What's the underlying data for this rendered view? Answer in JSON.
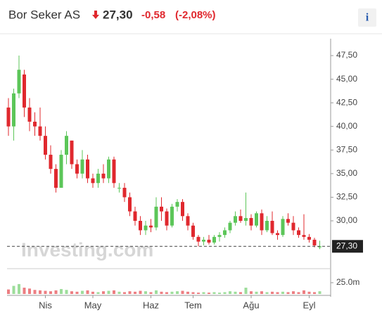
{
  "header": {
    "name": "Bor Seker AS",
    "price": "27,30",
    "change": "-0,58",
    "change_pct": "(-2,08%)",
    "info_button": "i"
  },
  "chart_data": {
    "type": "candlestick",
    "watermark": "Investing.com",
    "categories": [
      null,
      null,
      null,
      null,
      null,
      null,
      null,
      "Nis",
      null,
      null,
      null,
      null,
      null,
      null,
      null,
      null,
      "May",
      null,
      null,
      null,
      null,
      null,
      null,
      null,
      null,
      null,
      null,
      "Haz",
      null,
      null,
      null,
      null,
      null,
      null,
      null,
      "Tem",
      null,
      null,
      null,
      null,
      null,
      null,
      null,
      null,
      null,
      null,
      "Ağu",
      null,
      null,
      null,
      null,
      null,
      null,
      null,
      null,
      null,
      null,
      "Eyl",
      null,
      null
    ],
    "open": [
      42,
      40,
      43.5,
      45.5,
      42,
      40.5,
      40,
      39,
      37,
      35.5,
      33.5,
      37,
      38.5,
      36,
      35,
      36.5,
      34.5,
      34,
      35,
      34.5,
      36.5,
      33.5,
      33.5,
      32.5,
      31,
      30,
      29,
      29.5,
      29.3,
      31.5,
      31,
      29.5,
      31.5,
      32,
      30.5,
      29.5,
      28.3,
      27.8,
      28,
      27.7,
      28.3,
      28.5,
      29,
      29.8,
      30.5,
      30,
      30.3,
      29.5,
      30.8,
      29,
      30,
      28.7,
      28.5,
      30.2,
      29.8,
      29,
      28.5,
      28.3,
      28,
      27.2
    ],
    "high": [
      43,
      44,
      47.5,
      46,
      43,
      41.5,
      42,
      40,
      38,
      36,
      37.5,
      39.5,
      38.5,
      36.5,
      37.5,
      37,
      35,
      35.5,
      36,
      36.8,
      36.8,
      34,
      34,
      33,
      31.5,
      30.5,
      30,
      30.2,
      32.5,
      32.5,
      31.3,
      31.8,
      32.3,
      32.3,
      30.8,
      29.8,
      28.5,
      28.3,
      28.5,
      28.5,
      28.8,
      29.3,
      30,
      31,
      31.2,
      33,
      30.7,
      31,
      31.2,
      30.5,
      31,
      29,
      30.5,
      30.8,
      30.5,
      29.3,
      30.7,
      28.6,
      28.2,
      27.9
    ],
    "low": [
      39,
      38.5,
      43,
      41,
      39.5,
      39,
      38.5,
      36.5,
      35,
      33,
      33.5,
      36,
      35.5,
      34.5,
      34.5,
      34,
      33.5,
      33.5,
      34,
      34,
      33.5,
      33,
      32,
      30.5,
      29.5,
      28.5,
      28.5,
      28.8,
      29,
      30,
      29,
      29.3,
      31,
      30,
      29,
      28,
      27.3,
      27.4,
      27.5,
      27.5,
      27.8,
      28.2,
      28.7,
      29.5,
      29.8,
      29.5,
      29,
      29.3,
      28.5,
      28.8,
      28.5,
      28,
      28.3,
      29.5,
      28.5,
      28.2,
      28,
      27.7,
      27.2,
      27
    ],
    "close": [
      40,
      43.5,
      46,
      42,
      40.5,
      40,
      39,
      37,
      35.5,
      33.5,
      37,
      39,
      36,
      35,
      36.5,
      34.5,
      34,
      35,
      34.5,
      36.5,
      34,
      33.5,
      32.5,
      31,
      30,
      29,
      29.5,
      29.3,
      31.5,
      31,
      29.5,
      31.5,
      32,
      30.5,
      29.5,
      28.3,
      27.8,
      28,
      27.7,
      28.3,
      28.5,
      29,
      29.8,
      30.5,
      30,
      30.3,
      29.5,
      30.8,
      29,
      30,
      28.7,
      28.5,
      30.2,
      29.8,
      29,
      28.5,
      28.3,
      28,
      27.4,
      27.3
    ],
    "volume": [
      10,
      18,
      22,
      14,
      12,
      9,
      8,
      7,
      6,
      8,
      11,
      9,
      6,
      5,
      7,
      8,
      5,
      4,
      6,
      7,
      8,
      5,
      4,
      6,
      5,
      7,
      6,
      4,
      8,
      5,
      4,
      5,
      6,
      7,
      5,
      4,
      3,
      4,
      3,
      4,
      3,
      4,
      6,
      5,
      4,
      14,
      6,
      5,
      6,
      4,
      5,
      4,
      5,
      4,
      6,
      4,
      8,
      5,
      4,
      6
    ],
    "up_color": "#5cc659",
    "down_color": "#e0282e",
    "ylim": [
      25.83,
      48.77
    ],
    "yticks": [
      {
        "value": 30,
        "label": "30,00"
      },
      {
        "value": 32.5,
        "label": "32,50"
      },
      {
        "value": 35,
        "label": "35,00"
      },
      {
        "value": 37.5,
        "label": "37,50"
      },
      {
        "value": 40,
        "label": "40,00"
      },
      {
        "value": 42.5,
        "label": "42,50"
      },
      {
        "value": 45,
        "label": "45,00"
      },
      {
        "value": 47.5,
        "label": "47,50"
      }
    ],
    "last_price": {
      "value": 27.3,
      "label": "27,30"
    },
    "volume_ylim": [
      0,
      51.5
    ],
    "volume_yticks": [
      {
        "value": 25,
        "label": "25.0m"
      }
    ]
  }
}
